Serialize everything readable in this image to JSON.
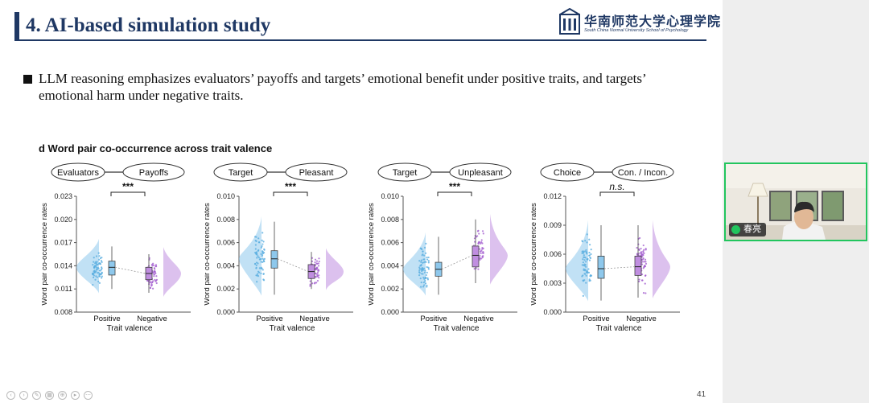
{
  "slide": {
    "title": "4. AI-based simulation study",
    "logo_text": "华南师范大学心理学院",
    "logo_subtext": "South China Normal University School of Psychology",
    "bullet": "LLM reasoning emphasizes evaluators’ payoffs and targets’ emotional benefit under positive traits, and targets’ emotional harm under negative traits.",
    "panel_caption": "d Word pair co-occurrence across trait valence",
    "page_number": "41"
  },
  "colors": {
    "title": "#1f3864",
    "positive": "#8ec8ec",
    "positive_dot": "#5aaee0",
    "negative": "#c08ee0",
    "negative_dot": "#a45fd0",
    "video_border": "#22c55e"
  },
  "video": {
    "name": "春亮"
  },
  "chart_data": [
    {
      "type": "raincloud",
      "pair": [
        "Evaluators",
        "Payoffs"
      ],
      "significance": "***",
      "categories": [
        "Positive",
        "Negative"
      ],
      "xlabel": "Trait valence",
      "ylabel": "Word pair co-occurrence rates",
      "yticks": [
        "0.008",
        "0.011",
        "0.014",
        "0.017",
        "0.020",
        "0.023"
      ],
      "ylim": [
        0.008,
        0.023
      ],
      "series": [
        {
          "values": {
            "min": 0.011,
            "q1": 0.0128,
            "median": 0.0138,
            "q3": 0.0146,
            "max": 0.0165
          }
        },
        {
          "values": {
            "min": 0.0105,
            "q1": 0.0122,
            "median": 0.013,
            "q3": 0.0138,
            "max": 0.0155
          }
        }
      ]
    },
    {
      "type": "raincloud",
      "pair": [
        "Target",
        "Pleasant"
      ],
      "significance": "***",
      "categories": [
        "Positive",
        "Negative"
      ],
      "xlabel": "Trait valence",
      "ylabel": "Word pair co-occurrence rates",
      "yticks": [
        "0.000",
        "0.002",
        "0.004",
        "0.006",
        "0.008",
        "0.010"
      ],
      "ylim": [
        0.0,
        0.01
      ],
      "series": [
        {
          "values": {
            "min": 0.0015,
            "q1": 0.0038,
            "median": 0.0046,
            "q3": 0.0053,
            "max": 0.0078
          }
        },
        {
          "values": {
            "min": 0.002,
            "q1": 0.0029,
            "median": 0.0035,
            "q3": 0.0041,
            "max": 0.0052
          }
        }
      ]
    },
    {
      "type": "raincloud",
      "pair": [
        "Target",
        "Unpleasant"
      ],
      "significance": "***",
      "categories": [
        "Positive",
        "Negative"
      ],
      "xlabel": "Trait valence",
      "ylabel": "Word pair co-occurrence rates",
      "yticks": [
        "0.000",
        "0.002",
        "0.004",
        "0.006",
        "0.008",
        "0.010"
      ],
      "ylim": [
        0.0,
        0.01
      ],
      "series": [
        {
          "values": {
            "min": 0.0015,
            "q1": 0.0031,
            "median": 0.0037,
            "q3": 0.0043,
            "max": 0.0065
          }
        },
        {
          "values": {
            "min": 0.0025,
            "q1": 0.0039,
            "median": 0.0049,
            "q3": 0.0057,
            "max": 0.008
          }
        }
      ]
    },
    {
      "type": "raincloud",
      "pair": [
        "Choice",
        "Con. / Incon."
      ],
      "significance": "n.s.",
      "categories": [
        "Positive",
        "Negative"
      ],
      "xlabel": "Trait valence",
      "ylabel": "Word pair co-occurrence rates",
      "yticks": [
        "0.000",
        "0.003",
        "0.006",
        "0.009",
        "0.012"
      ],
      "ylim": [
        0.0,
        0.012
      ],
      "series": [
        {
          "values": {
            "min": 0.0012,
            "q1": 0.0035,
            "median": 0.0045,
            "q3": 0.0058,
            "max": 0.009
          }
        },
        {
          "values": {
            "min": 0.0015,
            "q1": 0.0038,
            "median": 0.0047,
            "q3": 0.0058,
            "max": 0.009
          }
        }
      ]
    }
  ]
}
